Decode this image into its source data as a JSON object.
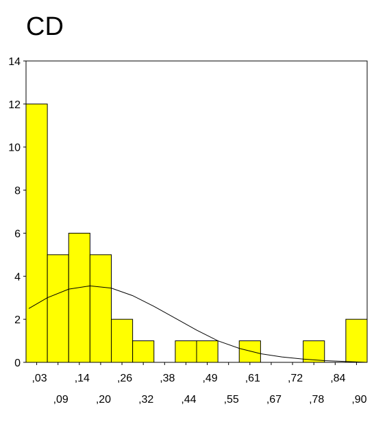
{
  "title": "CD",
  "chart_data": {
    "type": "bar",
    "title": "CD",
    "xlabel": "",
    "ylabel": "",
    "ylim": [
      0,
      14
    ],
    "y_ticks": [
      0,
      2,
      4,
      6,
      8,
      10,
      12,
      14
    ],
    "grid": false,
    "bar_color": "#ffff00",
    "x_ticks_row1": [
      ",03",
      ",14",
      ",26",
      ",38",
      ",49",
      ",61",
      ",72",
      ",84"
    ],
    "x_ticks_row2": [
      ",09",
      ",20",
      ",32",
      ",44",
      ",55",
      ",67",
      ",78",
      ",90"
    ],
    "bin_labels": [
      ",03",
      ",09",
      ",14",
      ",20",
      ",26",
      ",32",
      ",38",
      ",44",
      ",49",
      ",55",
      ",61",
      ",67",
      ",72",
      ",78",
      ",84",
      ",90"
    ],
    "values": [
      12,
      5,
      6,
      5,
      2,
      1,
      0,
      1,
      1,
      0,
      1,
      0,
      0,
      1,
      0,
      2
    ],
    "normal_curve": {
      "shown": true,
      "x": [
        0.0,
        1.0,
        2.0,
        3.0,
        4.0,
        5.0,
        6.0,
        7.0,
        8.0,
        9.0,
        10.0,
        11.0,
        12.0,
        13.0,
        14.0,
        15.0,
        16.0
      ],
      "y": [
        2.5,
        3.0,
        3.4,
        3.55,
        3.45,
        3.1,
        2.6,
        2.05,
        1.5,
        1.0,
        0.65,
        0.4,
        0.25,
        0.15,
        0.08,
        0.04,
        0.0
      ]
    }
  }
}
